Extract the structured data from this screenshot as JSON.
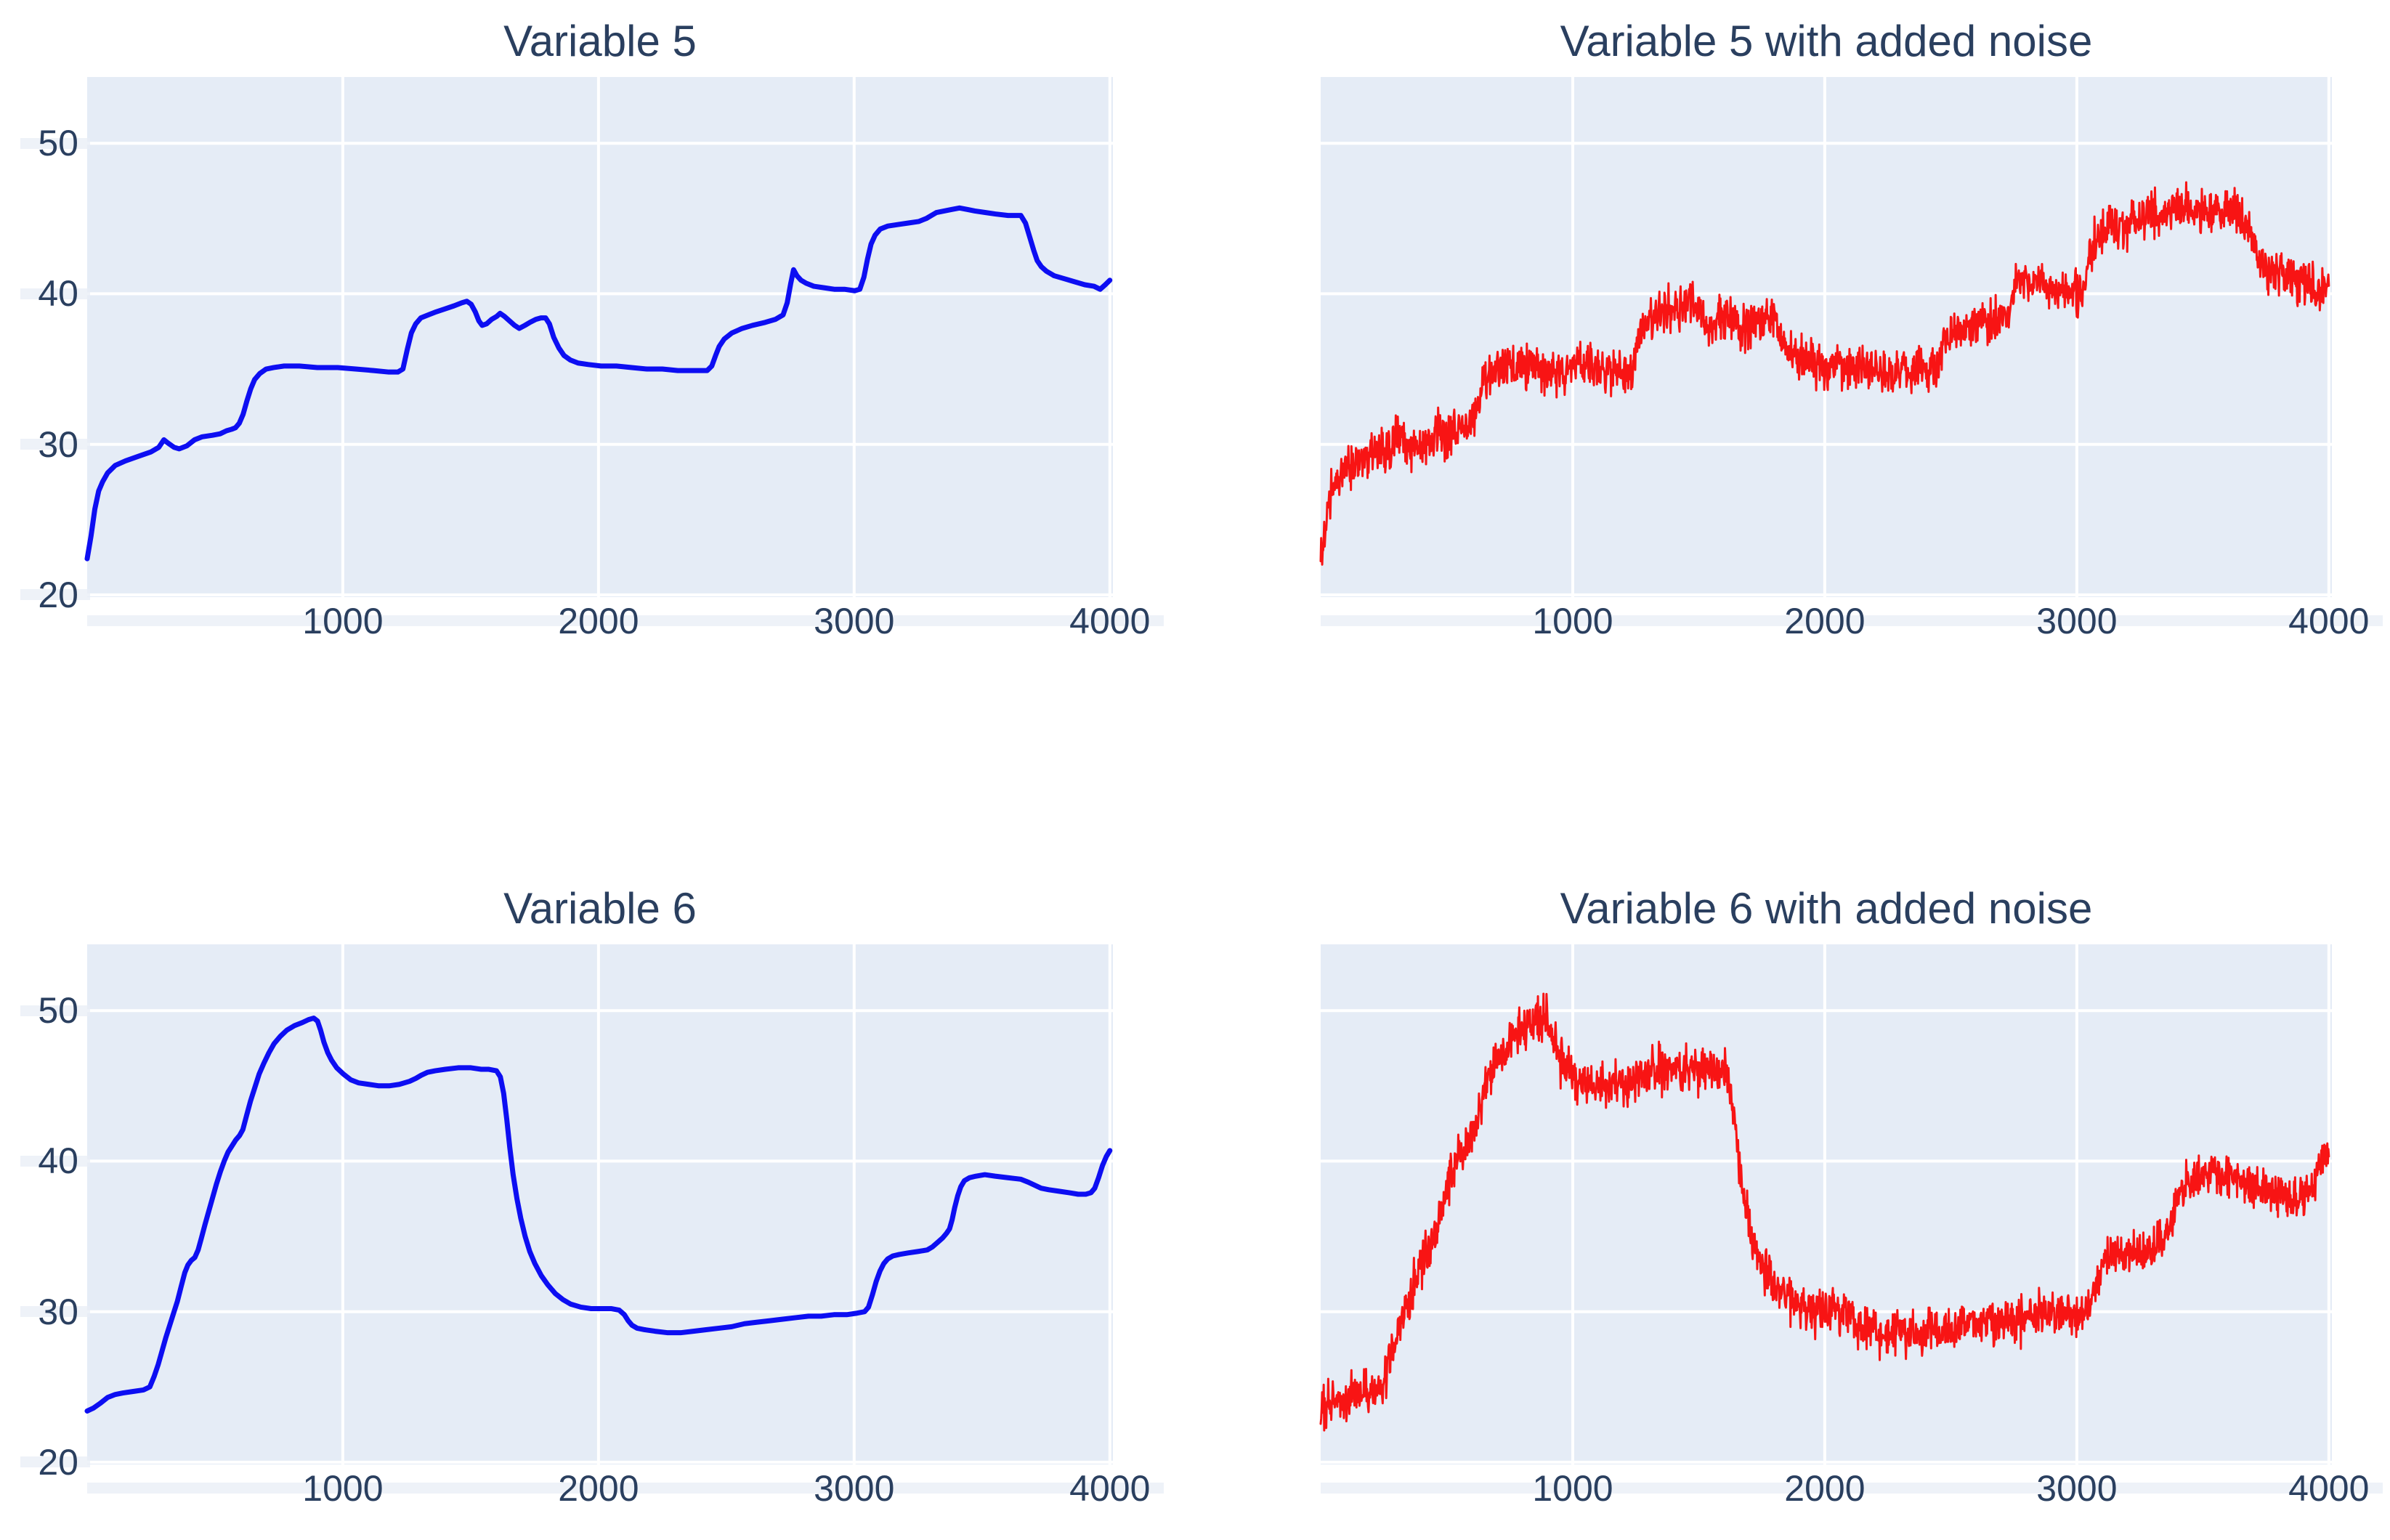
{
  "figure": {
    "background_color": "#ffffff",
    "plot_background_color": "#e5ecf6",
    "grid_color": "#ffffff",
    "text_color": "#2a3f5f"
  },
  "chart_data": [
    {
      "id": "variable5",
      "type": "line",
      "title": "Variable 5",
      "color": "#0d0ef2",
      "line_width": 7,
      "x_ticks": [
        1000,
        2000,
        3000,
        4000
      ],
      "y_ticks": [
        20,
        30,
        40,
        50
      ],
      "x_range": [
        0,
        4012
      ],
      "y_range": [
        19.85,
        54.4
      ],
      "y_labels_visible": true,
      "grid": true,
      "legend": "none",
      "points": [
        [
          0,
          22.4
        ],
        [
          15,
          23.9
        ],
        [
          30,
          25.7
        ],
        [
          45,
          26.9
        ],
        [
          60,
          27.5
        ],
        [
          80,
          28.1
        ],
        [
          110,
          28.6
        ],
        [
          150,
          28.9
        ],
        [
          200,
          29.2
        ],
        [
          250,
          29.5
        ],
        [
          280,
          29.8
        ],
        [
          300,
          30.3
        ],
        [
          315,
          30.1
        ],
        [
          340,
          29.8
        ],
        [
          360,
          29.7
        ],
        [
          390,
          29.9
        ],
        [
          420,
          30.3
        ],
        [
          450,
          30.5
        ],
        [
          490,
          30.6
        ],
        [
          520,
          30.7
        ],
        [
          545,
          30.9
        ],
        [
          565,
          31.0
        ],
        [
          580,
          31.1
        ],
        [
          595,
          31.4
        ],
        [
          610,
          32.0
        ],
        [
          625,
          32.9
        ],
        [
          640,
          33.7
        ],
        [
          655,
          34.3
        ],
        [
          675,
          34.7
        ],
        [
          700,
          35.0
        ],
        [
          730,
          35.1
        ],
        [
          770,
          35.2
        ],
        [
          830,
          35.2
        ],
        [
          900,
          35.1
        ],
        [
          980,
          35.1
        ],
        [
          1050,
          35.0
        ],
        [
          1120,
          34.9
        ],
        [
          1180,
          34.8
        ],
        [
          1215,
          34.8
        ],
        [
          1235,
          35.0
        ],
        [
          1252,
          36.3
        ],
        [
          1268,
          37.4
        ],
        [
          1285,
          38.0
        ],
        [
          1305,
          38.4
        ],
        [
          1335,
          38.6
        ],
        [
          1365,
          38.8
        ],
        [
          1400,
          39.0
        ],
        [
          1435,
          39.2
        ],
        [
          1465,
          39.4
        ],
        [
          1485,
          39.5
        ],
        [
          1502,
          39.3
        ],
        [
          1518,
          38.8
        ],
        [
          1532,
          38.2
        ],
        [
          1545,
          37.9
        ],
        [
          1562,
          38.0
        ],
        [
          1582,
          38.3
        ],
        [
          1602,
          38.5
        ],
        [
          1615,
          38.7
        ],
        [
          1632,
          38.5
        ],
        [
          1652,
          38.2
        ],
        [
          1672,
          37.9
        ],
        [
          1690,
          37.7
        ],
        [
          1712,
          37.9
        ],
        [
          1732,
          38.1
        ],
        [
          1755,
          38.3
        ],
        [
          1775,
          38.4
        ],
        [
          1793,
          38.4
        ],
        [
          1808,
          38.0
        ],
        [
          1825,
          37.1
        ],
        [
          1845,
          36.4
        ],
        [
          1865,
          35.9
        ],
        [
          1890,
          35.6
        ],
        [
          1920,
          35.4
        ],
        [
          1960,
          35.3
        ],
        [
          2010,
          35.2
        ],
        [
          2070,
          35.2
        ],
        [
          2130,
          35.1
        ],
        [
          2190,
          35.0
        ],
        [
          2250,
          35.0
        ],
        [
          2310,
          34.9
        ],
        [
          2370,
          34.9
        ],
        [
          2425,
          34.9
        ],
        [
          2443,
          35.2
        ],
        [
          2458,
          35.9
        ],
        [
          2472,
          36.5
        ],
        [
          2492,
          37.0
        ],
        [
          2522,
          37.4
        ],
        [
          2562,
          37.7
        ],
        [
          2602,
          37.9
        ],
        [
          2652,
          38.1
        ],
        [
          2692,
          38.3
        ],
        [
          2722,
          38.6
        ],
        [
          2738,
          39.4
        ],
        [
          2752,
          40.7
        ],
        [
          2763,
          41.6
        ],
        [
          2776,
          41.2
        ],
        [
          2792,
          40.9
        ],
        [
          2812,
          40.7
        ],
        [
          2842,
          40.5
        ],
        [
          2882,
          40.4
        ],
        [
          2922,
          40.3
        ],
        [
          2962,
          40.3
        ],
        [
          3002,
          40.2
        ],
        [
          3022,
          40.3
        ],
        [
          3038,
          41.1
        ],
        [
          3052,
          42.3
        ],
        [
          3066,
          43.3
        ],
        [
          3082,
          43.9
        ],
        [
          3102,
          44.3
        ],
        [
          3132,
          44.5
        ],
        [
          3172,
          44.6
        ],
        [
          3212,
          44.7
        ],
        [
          3252,
          44.8
        ],
        [
          3282,
          45.0
        ],
        [
          3302,
          45.2
        ],
        [
          3322,
          45.4
        ],
        [
          3352,
          45.5
        ],
        [
          3382,
          45.6
        ],
        [
          3412,
          45.7
        ],
        [
          3442,
          45.6
        ],
        [
          3472,
          45.5
        ],
        [
          3512,
          45.4
        ],
        [
          3552,
          45.3
        ],
        [
          3602,
          45.2
        ],
        [
          3652,
          45.2
        ],
        [
          3670,
          44.7
        ],
        [
          3686,
          43.8
        ],
        [
          3702,
          42.9
        ],
        [
          3716,
          42.2
        ],
        [
          3732,
          41.8
        ],
        [
          3752,
          41.5
        ],
        [
          3782,
          41.2
        ],
        [
          3822,
          41.0
        ],
        [
          3862,
          40.8
        ],
        [
          3902,
          40.6
        ],
        [
          3938,
          40.5
        ],
        [
          3962,
          40.3
        ],
        [
          3982,
          40.6
        ],
        [
          4000,
          40.9
        ]
      ]
    },
    {
      "id": "variable5_noise",
      "type": "line",
      "title": "Variable 5 with added noise",
      "color": "#f81414",
      "line_width": 3,
      "x_ticks": [
        1000,
        2000,
        3000,
        4000
      ],
      "y_ticks": [
        20,
        30,
        40,
        50
      ],
      "x_range": [
        0,
        4012
      ],
      "y_range": [
        19.85,
        54.4
      ],
      "y_labels_visible": false,
      "grid": true,
      "legend": "none",
      "base_series": "variable5",
      "noise": {
        "amplitude": 1.45,
        "seed": 20240,
        "x_step": 2
      }
    },
    {
      "id": "variable6",
      "type": "line",
      "title": "Variable 6",
      "color": "#0d0ef2",
      "line_width": 7,
      "x_ticks": [
        1000,
        2000,
        3000,
        4000
      ],
      "y_ticks": [
        20,
        30,
        40,
        50
      ],
      "x_range": [
        0,
        4012
      ],
      "y_range": [
        19.85,
        54.4
      ],
      "y_labels_visible": true,
      "grid": true,
      "legend": "none",
      "points": [
        [
          0,
          23.4
        ],
        [
          25,
          23.6
        ],
        [
          50,
          23.9
        ],
        [
          80,
          24.3
        ],
        [
          110,
          24.5
        ],
        [
          140,
          24.6
        ],
        [
          180,
          24.7
        ],
        [
          220,
          24.8
        ],
        [
          245,
          25.0
        ],
        [
          262,
          25.7
        ],
        [
          278,
          26.5
        ],
        [
          293,
          27.4
        ],
        [
          308,
          28.3
        ],
        [
          323,
          29.1
        ],
        [
          338,
          29.9
        ],
        [
          353,
          30.7
        ],
        [
          368,
          31.7
        ],
        [
          382,
          32.6
        ],
        [
          394,
          33.1
        ],
        [
          407,
          33.4
        ],
        [
          421,
          33.6
        ],
        [
          434,
          34.1
        ],
        [
          447,
          34.9
        ],
        [
          461,
          35.8
        ],
        [
          476,
          36.7
        ],
        [
          491,
          37.6
        ],
        [
          506,
          38.5
        ],
        [
          521,
          39.3
        ],
        [
          536,
          40.0
        ],
        [
          551,
          40.6
        ],
        [
          566,
          41.0
        ],
        [
          581,
          41.4
        ],
        [
          596,
          41.7
        ],
        [
          609,
          42.1
        ],
        [
          623,
          43.0
        ],
        [
          639,
          44.0
        ],
        [
          656,
          44.9
        ],
        [
          673,
          45.8
        ],
        [
          691,
          46.5
        ],
        [
          711,
          47.2
        ],
        [
          731,
          47.8
        ],
        [
          756,
          48.3
        ],
        [
          781,
          48.7
        ],
        [
          811,
          49.0
        ],
        [
          841,
          49.2
        ],
        [
          866,
          49.4
        ],
        [
          886,
          49.5
        ],
        [
          901,
          49.3
        ],
        [
          913,
          48.7
        ],
        [
          926,
          47.9
        ],
        [
          941,
          47.2
        ],
        [
          956,
          46.7
        ],
        [
          976,
          46.2
        ],
        [
          1001,
          45.8
        ],
        [
          1031,
          45.4
        ],
        [
          1061,
          45.2
        ],
        [
          1101,
          45.1
        ],
        [
          1141,
          45.0
        ],
        [
          1181,
          45.0
        ],
        [
          1221,
          45.1
        ],
        [
          1261,
          45.3
        ],
        [
          1286,
          45.5
        ],
        [
          1306,
          45.7
        ],
        [
          1331,
          45.9
        ],
        [
          1361,
          46.0
        ],
        [
          1401,
          46.1
        ],
        [
          1451,
          46.2
        ],
        [
          1501,
          46.2
        ],
        [
          1541,
          46.1
        ],
        [
          1571,
          46.1
        ],
        [
          1601,
          46.0
        ],
        [
          1616,
          45.6
        ],
        [
          1629,
          44.5
        ],
        [
          1641,
          42.8
        ],
        [
          1653,
          40.9
        ],
        [
          1666,
          39.1
        ],
        [
          1681,
          37.5
        ],
        [
          1696,
          36.2
        ],
        [
          1713,
          35.0
        ],
        [
          1731,
          34.0
        ],
        [
          1751,
          33.2
        ],
        [
          1776,
          32.4
        ],
        [
          1801,
          31.8
        ],
        [
          1831,
          31.2
        ],
        [
          1861,
          30.8
        ],
        [
          1891,
          30.5
        ],
        [
          1931,
          30.3
        ],
        [
          1971,
          30.2
        ],
        [
          2011,
          30.2
        ],
        [
          2051,
          30.2
        ],
        [
          2081,
          30.1
        ],
        [
          2101,
          29.8
        ],
        [
          2116,
          29.4
        ],
        [
          2131,
          29.1
        ],
        [
          2151,
          28.9
        ],
        [
          2181,
          28.8
        ],
        [
          2221,
          28.7
        ],
        [
          2271,
          28.6
        ],
        [
          2321,
          28.6
        ],
        [
          2371,
          28.7
        ],
        [
          2421,
          28.8
        ],
        [
          2471,
          28.9
        ],
        [
          2521,
          29.0
        ],
        [
          2571,
          29.2
        ],
        [
          2621,
          29.3
        ],
        [
          2671,
          29.4
        ],
        [
          2721,
          29.5
        ],
        [
          2771,
          29.6
        ],
        [
          2821,
          29.7
        ],
        [
          2871,
          29.7
        ],
        [
          2921,
          29.8
        ],
        [
          2971,
          29.8
        ],
        [
          3011,
          29.9
        ],
        [
          3041,
          30.0
        ],
        [
          3056,
          30.3
        ],
        [
          3071,
          31.1
        ],
        [
          3086,
          32.0
        ],
        [
          3101,
          32.7
        ],
        [
          3116,
          33.2
        ],
        [
          3131,
          33.5
        ],
        [
          3151,
          33.7
        ],
        [
          3176,
          33.8
        ],
        [
          3211,
          33.9
        ],
        [
          3251,
          34.0
        ],
        [
          3286,
          34.1
        ],
        [
          3306,
          34.3
        ],
        [
          3326,
          34.6
        ],
        [
          3346,
          34.9
        ],
        [
          3361,
          35.2
        ],
        [
          3373,
          35.5
        ],
        [
          3383,
          36.1
        ],
        [
          3393,
          36.9
        ],
        [
          3405,
          37.7
        ],
        [
          3417,
          38.3
        ],
        [
          3431,
          38.7
        ],
        [
          3451,
          38.9
        ],
        [
          3476,
          39.0
        ],
        [
          3511,
          39.1
        ],
        [
          3551,
          39.0
        ],
        [
          3601,
          38.9
        ],
        [
          3651,
          38.8
        ],
        [
          3681,
          38.6
        ],
        [
          3706,
          38.4
        ],
        [
          3731,
          38.2
        ],
        [
          3761,
          38.1
        ],
        [
          3801,
          38.0
        ],
        [
          3841,
          37.9
        ],
        [
          3876,
          37.8
        ],
        [
          3906,
          37.8
        ],
        [
          3926,
          37.9
        ],
        [
          3941,
          38.2
        ],
        [
          3956,
          38.9
        ],
        [
          3971,
          39.7
        ],
        [
          3986,
          40.3
        ],
        [
          4000,
          40.7
        ]
      ]
    },
    {
      "id": "variable6_noise",
      "type": "line",
      "title": "Variable 6 with added noise",
      "color": "#f81414",
      "line_width": 3,
      "x_ticks": [
        1000,
        2000,
        3000,
        4000
      ],
      "y_ticks": [
        20,
        30,
        40,
        50
      ],
      "x_range": [
        0,
        4012
      ],
      "y_range": [
        19.85,
        54.4
      ],
      "y_labels_visible": false,
      "grid": true,
      "legend": "none",
      "base_series": "variable6",
      "noise": {
        "amplitude": 1.45,
        "seed": 777,
        "x_step": 2
      }
    }
  ]
}
